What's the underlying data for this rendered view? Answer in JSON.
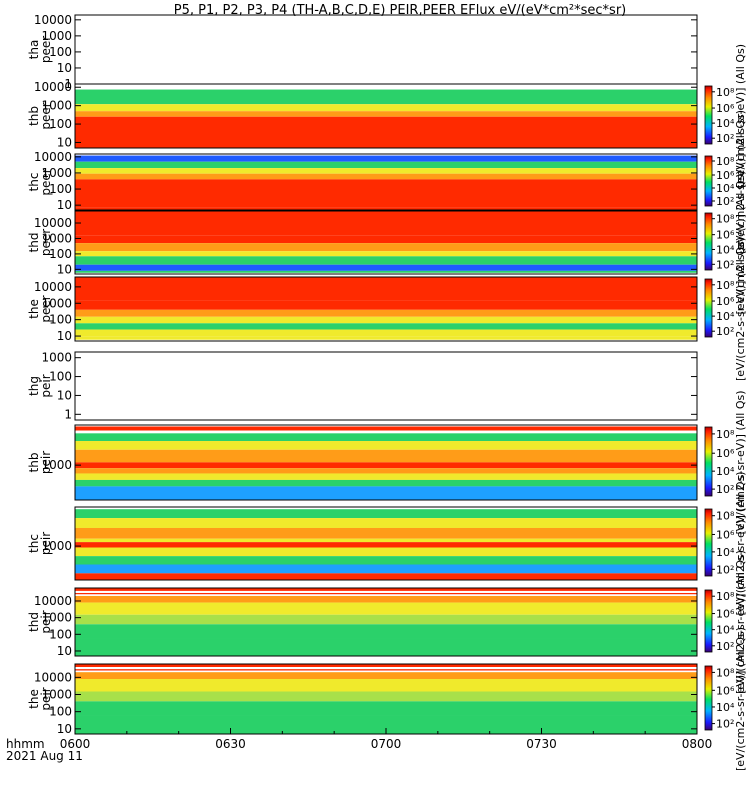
{
  "chart_data": {
    "type": "heatmap",
    "title": "P5, P1, P2, P3, P4 (TH-A,B,C,D,E) PEIR,PEER EFlux eV/(eV*cm²*sec*sr)",
    "x_label_line1": "hhmm",
    "x_label_line2": "2021 Aug 11",
    "x_ticks": [
      "0600",
      "0630",
      "0700",
      "0730",
      "0800"
    ],
    "x_range": [
      "06:00",
      "08:00"
    ],
    "colormap": "rainbow",
    "panels": [
      {
        "id": "tha_peer",
        "label": [
          "tha",
          "peer"
        ],
        "scale": "log",
        "y_ticks": [
          "10000",
          "1000",
          "100",
          "10",
          "1"
        ],
        "y_range": [
          1,
          20000
        ],
        "has_data": false,
        "colorbar": false,
        "cb_label": "",
        "bands": []
      },
      {
        "id": "thb_peer",
        "label": [
          "thb",
          "peer"
        ],
        "scale": "log",
        "y_ticks": [
          "10000",
          "1000",
          "100",
          "10"
        ],
        "y_range": [
          5,
          15000
        ],
        "has_data": true,
        "colorbar": true,
        "cb_label": "[eV/(cm2-s-sr-eV)] (All Qs)",
        "cb_ticks": [
          "10⁸",
          "10⁶",
          "10⁴",
          "10²"
        ],
        "bands": [
          [
            10000,
            "#ffffff"
          ],
          [
            7500,
            "#2bd16a"
          ],
          [
            1200,
            "#f0ea2c"
          ],
          [
            500,
            "#ff9c18"
          ],
          [
            250,
            "#ff2a00"
          ],
          [
            5,
            "#ff2a00"
          ]
        ]
      },
      {
        "id": "thc_peer",
        "label": [
          "thc",
          "peer"
        ],
        "scale": "log",
        "y_ticks": [
          "10000",
          "1000",
          "100",
          "10"
        ],
        "y_range": [
          5,
          15000
        ],
        "has_data": true,
        "colorbar": true,
        "cb_label": "[eV/(cm2-s-sr-eV)] (All Qs)",
        "cb_ticks": [
          "10⁸",
          "10⁶",
          "10⁴",
          "10²"
        ],
        "bands": [
          [
            15000,
            "#ffffff"
          ],
          [
            12000,
            "#1f5bff"
          ],
          [
            5000,
            "#2bd16a"
          ],
          [
            2000,
            "#f0ea2c"
          ],
          [
            900,
            "#ff9c18"
          ],
          [
            400,
            "#ff2a00"
          ],
          [
            7,
            "#ff2a00"
          ],
          [
            5,
            "#7a0000"
          ]
        ]
      },
      {
        "id": "thd_peer",
        "label": [
          "thd",
          "peer"
        ],
        "scale": "log",
        "y_ticks": [
          "10000",
          "1000",
          "100",
          "10"
        ],
        "y_range": [
          5,
          60000
        ],
        "has_data": true,
        "colorbar": true,
        "cb_label": "[eV/(cm2-s-sr-eV)] (All Qs)",
        "cb_ticks": [
          "10⁸",
          "10⁶",
          "10⁴",
          "10²"
        ],
        "bands": [
          [
            60000,
            "#ff2a00"
          ],
          [
            1500,
            "#ff2a00"
          ],
          [
            500,
            "#ff9c18"
          ],
          [
            150,
            "#f0ea2c"
          ],
          [
            70,
            "#2bd16a"
          ],
          [
            20,
            "#1f5bff"
          ],
          [
            8,
            "#2bd16a"
          ],
          [
            6,
            "#7a0000"
          ]
        ]
      },
      {
        "id": "the_peer",
        "label": [
          "the",
          "peer"
        ],
        "scale": "log",
        "y_ticks": [
          "10000",
          "1000",
          "100",
          "10"
        ],
        "y_range": [
          5,
          40000
        ],
        "has_data": true,
        "colorbar": true,
        "cb_label": "[eV/(cm2-s-sr-eV)] (All Qs)",
        "cb_ticks": [
          "10⁸",
          "10⁶",
          "10⁴",
          "10²"
        ],
        "bands": [
          [
            40000,
            "#ff2a00"
          ],
          [
            1500,
            "#ff2a00"
          ],
          [
            400,
            "#ff9c18"
          ],
          [
            150,
            "#f0ea2c"
          ],
          [
            60,
            "#2bd16a"
          ],
          [
            25,
            "#f0ea2c"
          ],
          [
            9,
            "#f0ea2c"
          ],
          [
            6,
            "#7a0000"
          ]
        ]
      },
      {
        "id": "thg_peir",
        "label": [
          "thg",
          "peir"
        ],
        "scale": "log",
        "y_ticks": [
          "1000",
          "100",
          "10",
          "1"
        ],
        "y_range": [
          0.5,
          2000
        ],
        "has_data": false,
        "colorbar": false,
        "cb_label": "",
        "bands": []
      },
      {
        "id": "thb_peir",
        "label": [
          "thb",
          "peir"
        ],
        "scale": "log",
        "y_ticks": [
          "1000"
        ],
        "y_range": [
          300,
          4000
        ],
        "has_data": true,
        "colorbar": true,
        "cb_label": "[eV/(cm2-s-sr-eV)] (All Qs)",
        "cb_ticks": [
          "10⁸",
          "10⁶",
          "10⁴",
          "10²"
        ],
        "bands": [
          [
            4000,
            "#ffffff"
          ],
          [
            3800,
            "#ff2a00"
          ],
          [
            3300,
            "#ffffff"
          ],
          [
            3000,
            "#2bd16a"
          ],
          [
            2300,
            "#f0ea2c"
          ],
          [
            1700,
            "#ff9c18"
          ],
          [
            1100,
            "#ff2a00"
          ],
          [
            900,
            "#ff9c18"
          ],
          [
            750,
            "#f0ea2c"
          ],
          [
            600,
            "#2bd16a"
          ],
          [
            480,
            "#1ea0ff"
          ],
          [
            300,
            "#1ea0ff"
          ]
        ]
      },
      {
        "id": "thc_peir",
        "label": [
          "thc",
          "peir"
        ],
        "scale": "log",
        "y_ticks": [
          "1000"
        ],
        "y_range": [
          300,
          4000
        ],
        "has_data": true,
        "colorbar": true,
        "cb_label": "[eV/(cm2-s-sr-eV)] (All Qs)",
        "cb_ticks": [
          "10⁸",
          "10⁶",
          "10⁴",
          "10²"
        ],
        "bands": [
          [
            4000,
            "#ffffff"
          ],
          [
            3700,
            "#2bd16a"
          ],
          [
            2700,
            "#f0ea2c"
          ],
          [
            1900,
            "#ff9c18"
          ],
          [
            1300,
            "#f0ea2c"
          ],
          [
            1150,
            "#ff2a00"
          ],
          [
            950,
            "#f0ea2c"
          ],
          [
            700,
            "#2bd16a"
          ],
          [
            520,
            "#1ea0ff"
          ],
          [
            380,
            "#ff2a00"
          ],
          [
            300,
            "#ff2a00"
          ]
        ]
      },
      {
        "id": "thd_peir",
        "label": [
          "thd",
          "peir"
        ],
        "scale": "log",
        "y_ticks": [
          "10000",
          "1000",
          "100",
          "10"
        ],
        "y_range": [
          5,
          60000
        ],
        "has_data": true,
        "colorbar": true,
        "cb_label": "[eV/(cm2-s-sr-eV)] (All Qs)",
        "cb_ticks": [
          "10⁸",
          "10⁶",
          "10⁴",
          "10²"
        ],
        "bands": [
          [
            60000,
            "#ff2a00"
          ],
          [
            40000,
            "#ffffff"
          ],
          [
            30000,
            "#ff2a00"
          ],
          [
            25000,
            "#ffffff"
          ],
          [
            20000,
            "#ff9c18"
          ],
          [
            8000,
            "#f0ea2c"
          ],
          [
            1500,
            "#a8e04a"
          ],
          [
            400,
            "#2bd16a"
          ],
          [
            60,
            "#2bd16a"
          ],
          [
            5,
            "#3bc8a8"
          ]
        ]
      },
      {
        "id": "the_peir",
        "label": [
          "the",
          "peir"
        ],
        "scale": "log",
        "y_ticks": [
          "10000",
          "1000",
          "100",
          "10"
        ],
        "y_range": [
          5,
          60000
        ],
        "has_data": true,
        "colorbar": true,
        "cb_label": "[eV/(cm2-s-sr-eV)] (All Qs)",
        "cb_ticks": [
          "10⁸",
          "10⁶",
          "10⁴",
          "10²"
        ],
        "bands": [
          [
            60000,
            "#ff2a00"
          ],
          [
            40000,
            "#ffffff"
          ],
          [
            30000,
            "#ff2a00"
          ],
          [
            25000,
            "#ffffff"
          ],
          [
            20000,
            "#ff9c18"
          ],
          [
            8000,
            "#f0ea2c"
          ],
          [
            1500,
            "#a8e04a"
          ],
          [
            400,
            "#2bd16a"
          ],
          [
            60,
            "#2bd16a"
          ],
          [
            5,
            "#3bc8a8"
          ]
        ]
      }
    ]
  }
}
